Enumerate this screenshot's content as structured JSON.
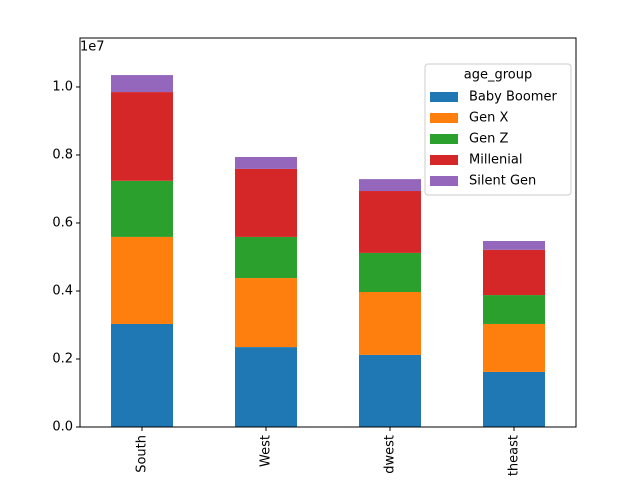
{
  "chart_data": {
    "type": "stacked-bar",
    "y_offset_label": "1e7",
    "categories": [
      "South",
      "West",
      "dwest",
      "theast"
    ],
    "series": [
      {
        "name": "Baby Boomer",
        "color": "#1f77b4",
        "values": [
          0.303,
          0.235,
          0.212,
          0.162
        ]
      },
      {
        "name": "Gen X",
        "color": "#ff7f0e",
        "values": [
          0.256,
          0.203,
          0.185,
          0.141
        ]
      },
      {
        "name": "Gen Z",
        "color": "#2ca02c",
        "values": [
          0.165,
          0.121,
          0.115,
          0.085
        ]
      },
      {
        "name": "Millenial",
        "color": "#d62728",
        "values": [
          0.261,
          0.2,
          0.182,
          0.133
        ]
      },
      {
        "name": "Silent Gen",
        "color": "#9467bd",
        "values": [
          0.05,
          0.035,
          0.035,
          0.026
        ]
      }
    ],
    "legend_title": "age_group",
    "legend_position": "upper right",
    "ylim": [
      0,
      1.144
    ],
    "yticks": [
      {
        "value": 0,
        "label": "0.0"
      },
      0.2,
      0.4,
      0.6,
      0.8,
      {
        "value": 1,
        "label": "1.0"
      }
    ]
  }
}
